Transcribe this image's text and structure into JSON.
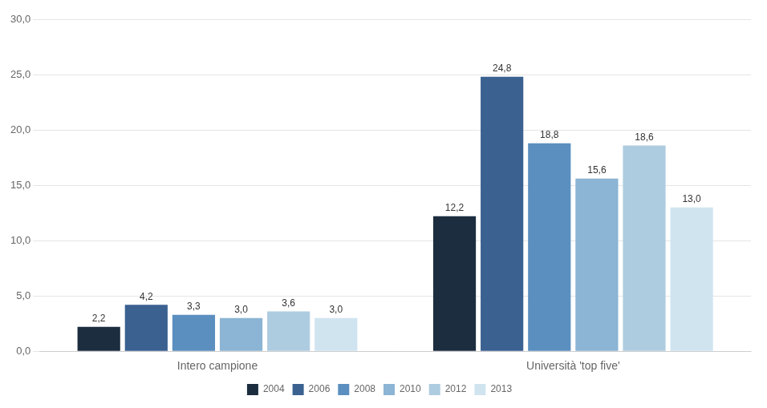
{
  "chart_data": {
    "type": "bar",
    "categories": [
      "Intero campione",
      "Università 'top five'"
    ],
    "series": [
      {
        "name": "2004",
        "color": "#1c2d40",
        "values": [
          2.2,
          12.2
        ],
        "value_labels": [
          "2,2",
          "12,2"
        ]
      },
      {
        "name": "2006",
        "color": "#3a6190",
        "values": [
          4.2,
          24.8
        ],
        "value_labels": [
          "4,2",
          "24,8"
        ]
      },
      {
        "name": "2008",
        "color": "#5b8fbf",
        "values": [
          3.3,
          18.8
        ],
        "value_labels": [
          "3,3",
          "18,8"
        ]
      },
      {
        "name": "2010",
        "color": "#8cb4d4",
        "values": [
          3.0,
          15.6
        ],
        "value_labels": [
          "3,0",
          "15,6"
        ]
      },
      {
        "name": "2012",
        "color": "#aecce0",
        "values": [
          3.6,
          18.6
        ],
        "value_labels": [
          "3,6",
          "18,6"
        ]
      },
      {
        "name": "2013",
        "color": "#d0e4f0",
        "values": [
          3.0,
          13.0
        ],
        "value_labels": [
          "3,0",
          "13,0"
        ]
      }
    ],
    "ylim": [
      0,
      30
    ],
    "yticks": [
      {
        "value": 0,
        "label": "0,0"
      },
      {
        "value": 5,
        "label": "5,0"
      },
      {
        "value": 10,
        "label": "10,0"
      },
      {
        "value": 15,
        "label": "15,0"
      },
      {
        "value": 20,
        "label": "20,0"
      },
      {
        "value": 25,
        "label": "25,0"
      },
      {
        "value": 30,
        "label": "30,0"
      }
    ],
    "grid": true,
    "legend": "bottom",
    "data_labels": true
  }
}
